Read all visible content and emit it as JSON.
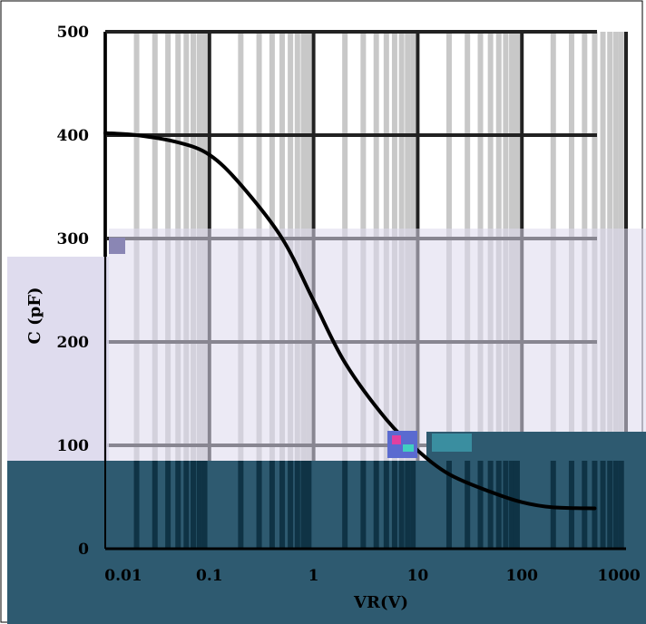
{
  "chart_data": {
    "type": "line",
    "xscale": "log",
    "xlim": [
      0.01,
      1000
    ],
    "ylim": [
      0,
      500
    ],
    "xlabel": "VR(V)",
    "ylabel": "C (pF)",
    "x_ticks": [
      0.01,
      0.1,
      1,
      10,
      100,
      1000
    ],
    "x_tick_labels": [
      "0.01",
      "0.1",
      "1",
      "10",
      "100",
      "1000"
    ],
    "y_ticks": [
      0,
      100,
      200,
      300,
      400,
      500
    ],
    "y_tick_labels": [
      "0",
      "100",
      "200",
      "300",
      "400",
      "500"
    ],
    "grid": true,
    "series": [
      {
        "x": [
          0.01,
          0.02,
          0.05,
          0.1,
          0.2,
          0.5,
          1,
          2,
          5,
          10,
          20,
          50,
          100,
          200,
          500
        ],
        "y": [
          402,
          400,
          393,
          381,
          352,
          300,
          240,
          180,
          125,
          95,
          72,
          55,
          45,
          40,
          39
        ]
      }
    ]
  },
  "colors": {
    "line": "#000000",
    "grid_major": "#222222",
    "minor_band": "#c8c8c8",
    "overlay_lavender": "#dcd8ec",
    "overlay_teal": "#2e5a70",
    "overlay_dark": "#0f3345"
  }
}
